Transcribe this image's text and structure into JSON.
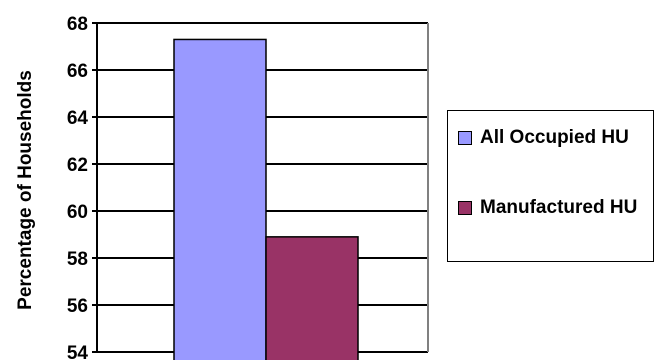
{
  "chart_data": {
    "type": "bar",
    "categories": [
      ""
    ],
    "series": [
      {
        "name": "All Occupied HU",
        "values": [
          67.3
        ],
        "color": "#9999FF"
      },
      {
        "name": "Manufactured HU",
        "values": [
          58.9
        ],
        "color": "#993366"
      }
    ],
    "title": "",
    "xlabel": "",
    "ylabel": "Percentage of Households",
    "ylim": [
      54,
      68
    ],
    "yticks": [
      "54",
      "56",
      "58",
      "60",
      "62",
      "64",
      "66",
      "68"
    ],
    "grid": true,
    "legend_position": "right"
  }
}
